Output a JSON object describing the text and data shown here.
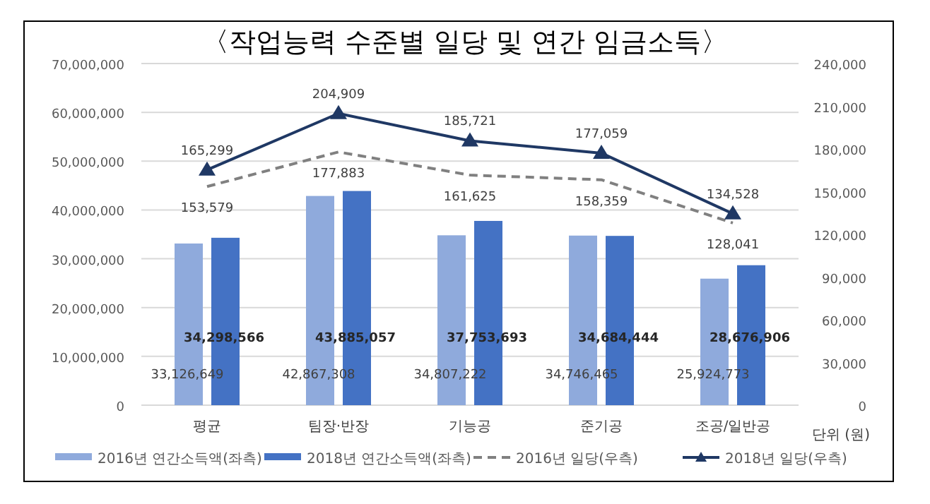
{
  "chart_data": {
    "type": "bar",
    "title": "〈작업능력 수준별 일당 및 연간 임금소득〉",
    "categories": [
      "평균",
      "팀장·반장",
      "기능공",
      "준기공",
      "조공/일반공"
    ],
    "series": [
      {
        "name": "2016년 연간소득액(좌측)",
        "color": "#8faadc",
        "values": [
          33126649,
          42867308,
          34807222,
          34746465,
          25924773
        ],
        "value_labels": [
          "33,126,649",
          "42,867,308",
          "34,807,222",
          "34,746,465",
          "25,924,773"
        ]
      },
      {
        "name": "2018년 연간소득액(좌측)",
        "color": "#4472c4",
        "values": [
          34298566,
          43885057,
          37753693,
          34684444,
          28676906
        ],
        "value_labels": [
          "34,298,566",
          "43,885,057",
          "37,753,693",
          "34,684,444",
          "28,676,906"
        ]
      },
      {
        "name": "2016년 일당(우측)",
        "type": "line",
        "axis": "y2",
        "line_style": "dashed",
        "marker": "none",
        "color": "#808080",
        "values": [
          153579,
          177883,
          161625,
          158359,
          128041
        ],
        "value_labels": [
          "153,579",
          "177,883",
          "161,625",
          "158,359",
          "128,041"
        ]
      },
      {
        "name": "2018년 일당(우측)",
        "type": "line",
        "axis": "y2",
        "line_style": "solid",
        "marker": "triangle",
        "color": "#1f3864",
        "values": [
          165299,
          204909,
          185721,
          177059,
          134528
        ],
        "value_labels": [
          "165,299",
          "204,909",
          "185,721",
          "177,059",
          "134,528"
        ]
      }
    ],
    "ylim": [
      0,
      70000000
    ],
    "yticks": [
      0,
      {
        "value": 10000000,
        "label": "10,000,000"
      },
      {
        "value": 20000000,
        "label": "20,000,000"
      },
      {
        "value": 30000000,
        "label": "30,000,000"
      },
      {
        "value": 40000000,
        "label": "40,000,000"
      },
      {
        "value": 50000000,
        "label": "50,000,000"
      },
      {
        "value": 60000000,
        "label": "60,000,000"
      },
      {
        "value": 70000000,
        "label": "70,000,000"
      }
    ],
    "y2lim": [
      0,
      240000
    ],
    "y2ticks": [
      0,
      {
        "value": 30000,
        "label": "30,000"
      },
      {
        "value": 60000,
        "label": "60,000"
      },
      {
        "value": 90000,
        "label": "90,000"
      },
      {
        "value": 120000,
        "label": "120,000"
      },
      {
        "value": 150000,
        "label": "150,000"
      },
      {
        "value": 180000,
        "label": "180,000"
      },
      {
        "value": 210000,
        "label": "210,000"
      },
      {
        "value": 240000,
        "label": "240,000"
      }
    ],
    "grid": "y",
    "legend": "bottom",
    "annotations": [
      "단위 (원)"
    ]
  }
}
